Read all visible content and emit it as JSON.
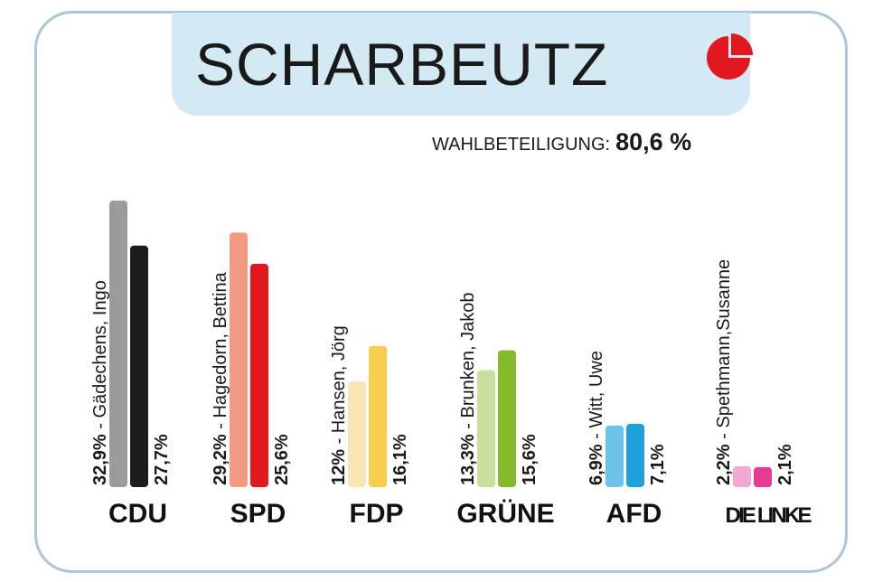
{
  "title": "SCHARBEUTZ",
  "turnout": {
    "label": "WAHLBETEILIGUNG:",
    "value": "80,6 %"
  },
  "chart_data": {
    "type": "bar",
    "title": "SCHARBEUTZ",
    "categories": [
      "CDU",
      "SPD",
      "FDP",
      "GRÜNE",
      "AFD",
      "DIE LINKE"
    ],
    "candidate_labels": [
      "32,9% - Gädechens, Ingo",
      "29,2% - Hagedorn, Bettina",
      "12% - Hansen, Jörg",
      "13,3% - Brunken, Jakob",
      "6,9% - Witt, Uwe",
      "2,2% - Spethmann,Susanne"
    ],
    "party_labels": [
      "27,7%",
      "25,6%",
      "16,1%",
      "15,6%",
      "7,1%",
      "2,1%"
    ],
    "series": [
      {
        "values": [
          32.9,
          29.2,
          12.0,
          13.3,
          6.9,
          2.2
        ],
        "colors": [
          "#9b9b9b",
          "#f29b82",
          "#fbe5b4",
          "#c9df9c",
          "#6cc3ec",
          "#f4a8cf"
        ]
      },
      {
        "values": [
          27.7,
          25.6,
          16.1,
          15.6,
          7.1,
          2.1
        ],
        "colors": [
          "#1c1c1c",
          "#e3171f",
          "#f7cd4e",
          "#85bb2a",
          "#1fa1dd",
          "#e63a94"
        ]
      }
    ],
    "ylim": [
      0,
      32.9
    ],
    "grid": false,
    "legend": "none"
  }
}
